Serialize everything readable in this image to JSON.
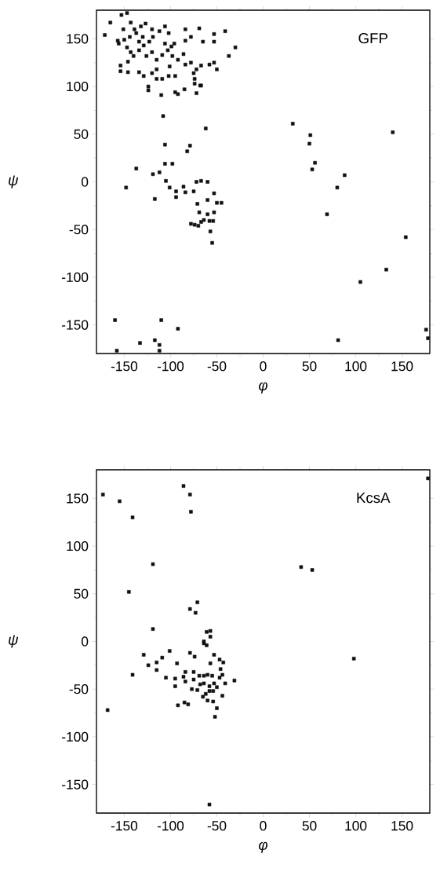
{
  "chart_data": [
    {
      "type": "scatter",
      "title": "GFP",
      "xlabel": "φ",
      "ylabel": "ψ",
      "xlim": [
        -180,
        180
      ],
      "ylim": [
        -180,
        180
      ],
      "xticks": [
        -150,
        -100,
        -50,
        0,
        50,
        100,
        150
      ],
      "yticks": [
        -150,
        -100,
        -50,
        0,
        50,
        100,
        150
      ],
      "marker": "square",
      "series": [
        {
          "color": "#111111",
          "x": [
            -171,
            -165,
            -153,
            -147,
            -143,
            -157,
            -156,
            -151,
            -139,
            -137,
            -132,
            -127,
            -120,
            -112,
            -106,
            -102,
            -84,
            -69,
            -53,
            -41,
            -53,
            -65,
            -84,
            -78,
            -96,
            -30,
            -37,
            -147,
            -143,
            -140,
            -146,
            -134,
            -129,
            -123,
            -119,
            -126,
            -120,
            -115,
            -109,
            -103,
            -98,
            -92,
            -86,
            -78,
            -72,
            -67,
            -58,
            -53,
            -50,
            -154,
            -154,
            -146,
            -134,
            -129,
            -120,
            -115,
            -109,
            -102,
            -95,
            -75,
            -74,
            -74,
            -68,
            -84,
            -101,
            -115,
            -106,
            -99,
            -134,
            -130,
            -144,
            -150,
            -124,
            -124,
            -110,
            -95,
            -92,
            -85,
            -72,
            -67,
            -108,
            -62,
            -106,
            -82,
            -79,
            -106,
            -98,
            -137,
            -119,
            -112,
            -148,
            -117,
            -105,
            -101,
            -94,
            -94,
            -86,
            -84,
            -75,
            -72,
            -67,
            -60,
            -53,
            -71,
            -60,
            -50,
            -45,
            -69,
            -53,
            -60,
            -78,
            -74,
            -70,
            -67,
            -64,
            -58,
            -54,
            -57,
            -55,
            32,
            51,
            50,
            56,
            53,
            88,
            80,
            140,
            69,
            154,
            133,
            105,
            -160,
            -110,
            -92,
            -117,
            -112,
            -112,
            -133,
            -158,
            81,
            176,
            178
          ],
          "values": [
            154,
            167,
            175,
            177,
            167,
            148,
            145,
            160,
            160,
            156,
            163,
            166,
            160,
            158,
            163,
            156,
            160,
            161,
            155,
            158,
            147,
            147,
            148,
            152,
            145,
            141,
            132,
            141,
            136,
            132,
            126,
            138,
            143,
            147,
            152,
            132,
            136,
            128,
            133,
            138,
            132,
            128,
            134,
            125,
            118,
            122,
            123,
            125,
            118,
            122,
            116,
            115,
            115,
            111,
            114,
            108,
            108,
            111,
            111,
            114,
            108,
            103,
            101,
            123,
            121,
            118,
            145,
            142,
            147,
            152,
            152,
            149,
            96,
            100,
            91,
            94,
            92,
            97,
            93,
            101,
            69,
            56,
            39,
            32,
            38,
            19,
            19,
            14,
            8,
            10,
            -6,
            -18,
            1,
            -6,
            -10,
            -16,
            -5,
            -11,
            -10,
            0,
            1,
            0,
            -12,
            -23,
            -19,
            -22,
            -22,
            -32,
            -32,
            -34,
            -44,
            -45,
            -46,
            -42,
            -40,
            -41,
            -41,
            -52,
            -64,
            61,
            49,
            40,
            20,
            13,
            7,
            -6,
            52,
            -34,
            -58,
            -92,
            -105,
            -145,
            -145,
            -154,
            -166,
            -171,
            -177,
            -169,
            -177,
            -166,
            -155,
            -164
          ]
        }
      ]
    },
    {
      "type": "scatter",
      "title": "KcsA",
      "xlabel": "φ",
      "ylabel": "ψ",
      "xlim": [
        -180,
        180
      ],
      "ylim": [
        -180,
        180
      ],
      "xticks": [
        -150,
        -100,
        -50,
        0,
        50,
        100,
        150
      ],
      "yticks": [
        -150,
        -100,
        -50,
        0,
        50,
        100,
        150
      ],
      "marker": "square",
      "series": [
        {
          "color": "#111111",
          "x": [
            -173,
            -155,
            -141,
            -86,
            -79,
            -78,
            -119,
            -145,
            41,
            53,
            178,
            -79,
            -73,
            -71,
            -119,
            -61,
            -57,
            -57,
            -64,
            -64,
            -61,
            -129,
            -124,
            -115,
            -115,
            -109,
            -141,
            -101,
            -105,
            -95,
            -95,
            -93,
            -79,
            -74,
            -84,
            -84,
            -86,
            -75,
            -75,
            -69,
            -77,
            -71,
            -68,
            -64,
            -60,
            -55,
            -53,
            -57,
            -47,
            -43,
            -46,
            -44,
            -47,
            -41,
            -31,
            -64,
            -58,
            -53,
            -50,
            -54,
            -58,
            -62,
            -65,
            -60,
            -54,
            -50,
            -52,
            -44,
            -92,
            -85,
            -81,
            -168,
            98,
            -58
          ],
          "values": [
            154,
            147,
            130,
            163,
            154,
            136,
            81,
            52,
            78,
            75,
            171,
            34,
            30,
            41,
            13,
            10,
            11,
            5,
            0,
            -2,
            -4,
            -14,
            -25,
            -22,
            -30,
            -17,
            -35,
            -10,
            -38,
            -39,
            -47,
            -23,
            -12,
            -16,
            -32,
            -42,
            -37,
            -32,
            -40,
            -36,
            -50,
            -51,
            -45,
            -36,
            -35,
            -36,
            -14,
            -23,
            -19,
            -22,
            -29,
            -35,
            -38,
            -44,
            -41,
            -44,
            -47,
            -44,
            -48,
            -52,
            -52,
            -55,
            -58,
            -62,
            -63,
            -70,
            -79,
            -57,
            -67,
            -64,
            -66,
            -72,
            -18,
            -171
          ]
        }
      ]
    }
  ]
}
